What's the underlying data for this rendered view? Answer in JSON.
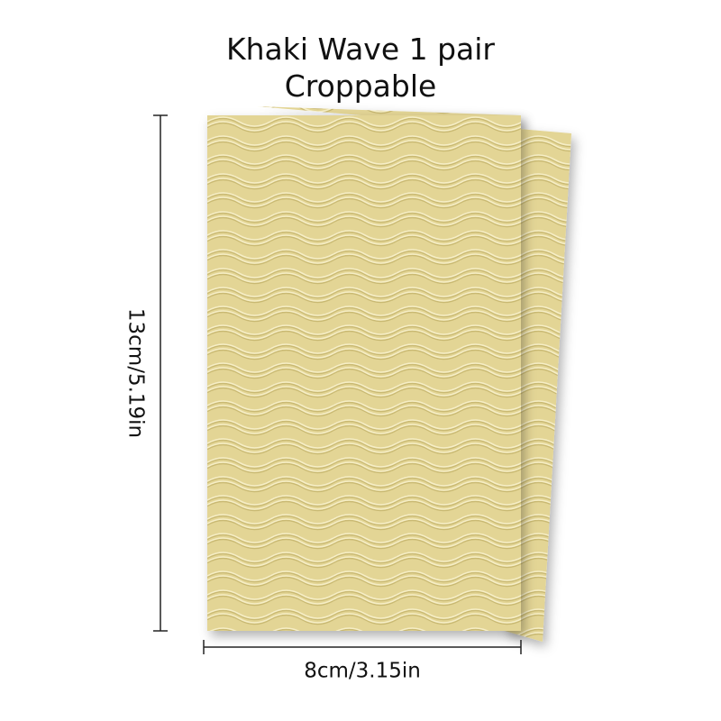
{
  "title": {
    "line1": "Khaki Wave 1 pair",
    "line2": "Croppable"
  },
  "dimensions": {
    "height": "13cm/5.19in",
    "width": "8cm/3.15in"
  }
}
